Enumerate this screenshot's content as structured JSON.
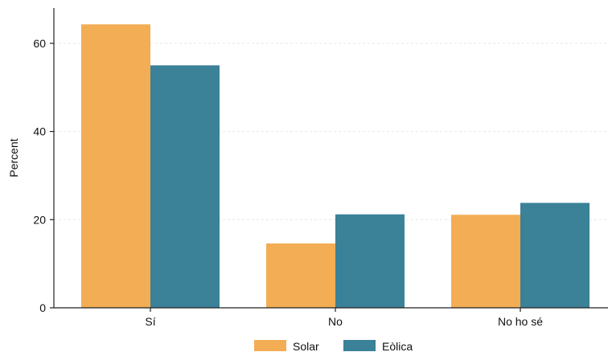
{
  "chart_data": {
    "type": "bar",
    "categories": [
      "Sí",
      "No",
      "No ho sé"
    ],
    "series": [
      {
        "name": "Solar",
        "values": [
          64.3,
          14.6,
          21.1
        ],
        "color": "#F2AD55"
      },
      {
        "name": "Eòlica",
        "values": [
          55.0,
          21.2,
          23.8
        ],
        "color": "#3B8198"
      }
    ],
    "title": "",
    "xlabel": "",
    "ylabel": "Percent",
    "ylim": [
      0,
      68
    ],
    "yticks": [
      0,
      20,
      40,
      60
    ],
    "ytick_labels": [
      "0",
      "20",
      "40",
      "60"
    ],
    "grid": true,
    "legend_position": "bottom"
  }
}
